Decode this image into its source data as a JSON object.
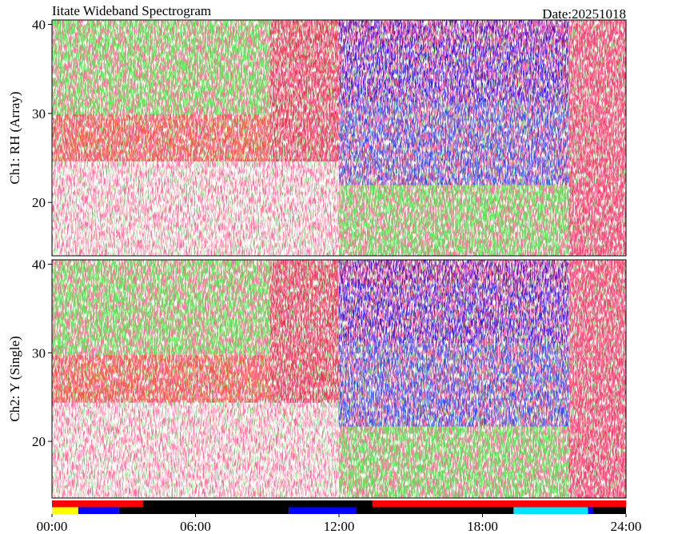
{
  "header": {
    "title": "Iitate Wideband Spectrogram",
    "date": "Date:20251018"
  },
  "chart_data": [
    {
      "type": "spectrogram",
      "y_label": "Ch1: RH (Array)",
      "xlim": [
        0,
        24
      ],
      "ylim": [
        14,
        40.5
      ],
      "yticks": [
        20,
        30,
        40
      ]
    },
    {
      "type": "spectrogram",
      "y_label": "Ch2: Y (Single)",
      "xlim": [
        0,
        24
      ],
      "ylim": [
        13.6,
        40.5
      ],
      "yticks": [
        20,
        30,
        40
      ]
    },
    {
      "type": "status_bar",
      "xlim": [
        0,
        24
      ],
      "xticks": [
        {
          "value": 0,
          "label": "00:00"
        },
        {
          "value": 6,
          "label": "06:00"
        },
        {
          "value": 12,
          "label": "12:00"
        },
        {
          "value": 18,
          "label": "18:00"
        },
        {
          "value": 24,
          "label": "24:00"
        }
      ],
      "rows": [
        [
          {
            "start": 0,
            "end": 3.8,
            "color": "#ff0000"
          },
          {
            "start": 3.8,
            "end": 13.4,
            "color": "#000000"
          },
          {
            "start": 13.4,
            "end": 24,
            "color": "#ff0000"
          }
        ],
        [
          {
            "start": 0,
            "end": 1.1,
            "color": "#ffff00"
          },
          {
            "start": 1.1,
            "end": 2.8,
            "color": "#0000ff"
          },
          {
            "start": 2.8,
            "end": 9.9,
            "color": "#000000"
          },
          {
            "start": 9.9,
            "end": 12.7,
            "color": "#0000ff"
          },
          {
            "start": 12.7,
            "end": 19.3,
            "color": "#000000"
          },
          {
            "start": 19.3,
            "end": 22.4,
            "color": "#00e5ff"
          },
          {
            "start": 22.4,
            "end": 22.6,
            "color": "#0000ff"
          },
          {
            "start": 22.6,
            "end": 24,
            "color": "#000000"
          }
        ]
      ]
    }
  ]
}
